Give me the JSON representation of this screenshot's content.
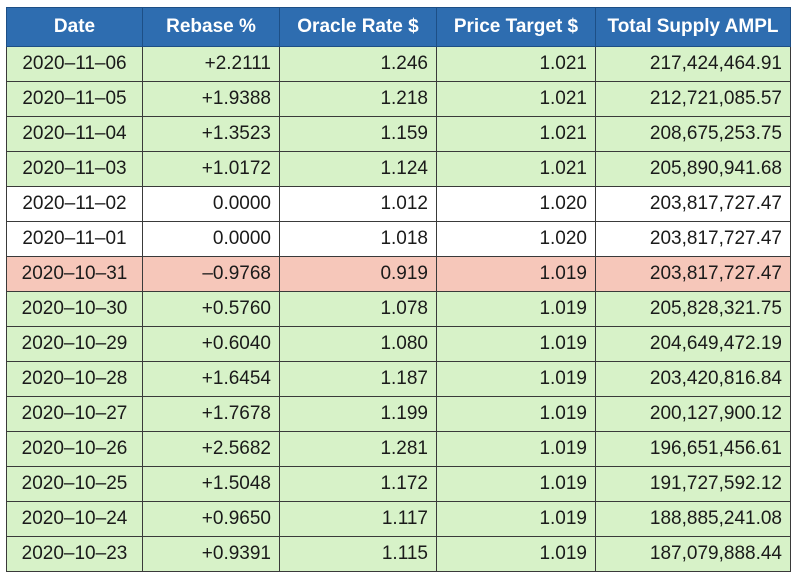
{
  "table": {
    "headers": [
      "Date",
      "Rebase %",
      "Oracle Rate $",
      "Price Target $",
      "Total Supply AMPL"
    ],
    "rows": [
      {
        "status": "pos",
        "cells": [
          "2020–11–06",
          "+2.2111",
          "1.246",
          "1.021",
          "217,424,464.91"
        ]
      },
      {
        "status": "pos",
        "cells": [
          "2020–11–05",
          "+1.9388",
          "1.218",
          "1.021",
          "212,721,085.57"
        ]
      },
      {
        "status": "pos",
        "cells": [
          "2020–11–04",
          "+1.3523",
          "1.159",
          "1.021",
          "208,675,253.75"
        ]
      },
      {
        "status": "pos",
        "cells": [
          "2020–11–03",
          "+1.0172",
          "1.124",
          "1.021",
          "205,890,941.68"
        ]
      },
      {
        "status": "zero",
        "cells": [
          "2020–11–02",
          "0.0000",
          "1.012",
          "1.020",
          "203,817,727.47"
        ]
      },
      {
        "status": "zero",
        "cells": [
          "2020–11–01",
          "0.0000",
          "1.018",
          "1.020",
          "203,817,727.47"
        ]
      },
      {
        "status": "neg",
        "cells": [
          "2020–10–31",
          "–0.9768",
          "0.919",
          "1.019",
          "203,817,727.47"
        ]
      },
      {
        "status": "pos",
        "cells": [
          "2020–10–30",
          "+0.5760",
          "1.078",
          "1.019",
          "205,828,321.75"
        ]
      },
      {
        "status": "pos",
        "cells": [
          "2020–10–29",
          "+0.6040",
          "1.080",
          "1.019",
          "204,649,472.19"
        ]
      },
      {
        "status": "pos",
        "cells": [
          "2020–10–28",
          "+1.6454",
          "1.187",
          "1.019",
          "203,420,816.84"
        ]
      },
      {
        "status": "pos",
        "cells": [
          "2020–10–27",
          "+1.7678",
          "1.199",
          "1.019",
          "200,127,900.12"
        ]
      },
      {
        "status": "pos",
        "cells": [
          "2020–10–26",
          "+2.5682",
          "1.281",
          "1.019",
          "196,651,456.61"
        ]
      },
      {
        "status": "pos",
        "cells": [
          "2020–10–25",
          "+1.5048",
          "1.172",
          "1.019",
          "191,727,592.12"
        ]
      },
      {
        "status": "pos",
        "cells": [
          "2020–10–24",
          "+0.9650",
          "1.117",
          "1.019",
          "188,885,241.08"
        ]
      },
      {
        "status": "pos",
        "cells": [
          "2020–10–23",
          "+0.9391",
          "1.115",
          "1.019",
          "187,079,888.44"
        ]
      }
    ]
  },
  "colors": {
    "header_bg": "#2e6db0",
    "positive_row": "#d7f2c8",
    "zero_row": "#ffffff",
    "negative_row": "#f6c7ba"
  }
}
